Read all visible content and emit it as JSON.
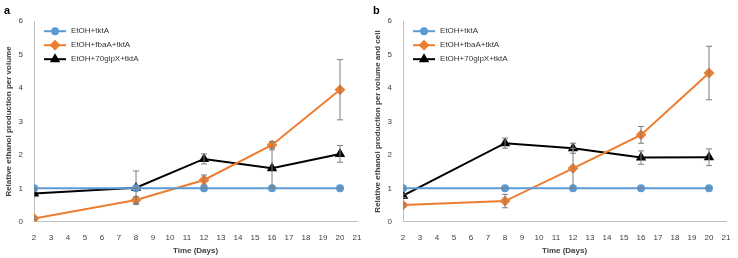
{
  "chart_data": [
    {
      "type": "line",
      "title": "a",
      "x": [
        2,
        8,
        12,
        16,
        20
      ],
      "xlim": [
        2,
        21
      ],
      "xticks": [
        2,
        3,
        4,
        5,
        6,
        7,
        8,
        9,
        10,
        11,
        12,
        13,
        14,
        15,
        16,
        17,
        18,
        19,
        20,
        21
      ],
      "ylim": [
        0,
        6
      ],
      "yticks": [
        0,
        1,
        2,
        3,
        4,
        5,
        6
      ],
      "x_label": "Time (Days)",
      "y_label": "Relative ethanol production per volume",
      "grid": false,
      "legend": "upper left",
      "series": [
        {
          "name": "EtOH+tktA",
          "color": "#5b9bd5",
          "marker": "circle",
          "values": [
            1,
            1,
            1,
            1,
            1
          ],
          "errors": [
            0,
            0,
            0,
            0,
            0
          ]
        },
        {
          "name": "EtOH+fbaA+tktA",
          "color": "#ed7d31",
          "marker": "diamond",
          "values": [
            0.1,
            0.65,
            1.25,
            2.3,
            3.95
          ],
          "errors": [
            0.05,
            0.1,
            0.15,
            0.1,
            0.9
          ]
        },
        {
          "name": "EtOH+70glpX+tktA",
          "color": "#000000",
          "marker": "triangle",
          "values": [
            0.85,
            1.02,
            1.88,
            1.6,
            2.03
          ],
          "errors": [
            0.1,
            0.5,
            0.15,
            0.55,
            0.25
          ]
        }
      ]
    },
    {
      "type": "line",
      "title": "b",
      "x": [
        2,
        8,
        12,
        16,
        20
      ],
      "xlim": [
        2,
        21
      ],
      "xticks": [
        2,
        3,
        4,
        5,
        6,
        7,
        8,
        9,
        10,
        11,
        12,
        13,
        14,
        15,
        16,
        17,
        18,
        19,
        20,
        21
      ],
      "ylim": [
        0,
        6
      ],
      "yticks": [
        0,
        1,
        2,
        3,
        4,
        5,
        6
      ],
      "x_label": "Time (Days)",
      "y_label": "Relative ethanol production per volume and cell",
      "grid": false,
      "legend": "upper left",
      "series": [
        {
          "name": "EtOH+tktA",
          "color": "#5b9bd5",
          "marker": "circle",
          "values": [
            1,
            1,
            1,
            1,
            1
          ],
          "errors": [
            0,
            0,
            0,
            0,
            0
          ]
        },
        {
          "name": "EtOH+fbaA+tktA",
          "color": "#ed7d31",
          "marker": "diamond",
          "values": [
            0.5,
            0.62,
            1.6,
            2.6,
            4.45
          ],
          "errors": [
            0.05,
            0.2,
            0.6,
            0.25,
            0.8
          ]
        },
        {
          "name": "EtOH+70glpX+tktA",
          "color": "#000000",
          "marker": "triangle",
          "values": [
            0.78,
            2.35,
            2.2,
            1.92,
            1.93
          ],
          "errors": [
            0.05,
            0.15,
            0.15,
            0.2,
            0.25
          ]
        }
      ]
    }
  ]
}
